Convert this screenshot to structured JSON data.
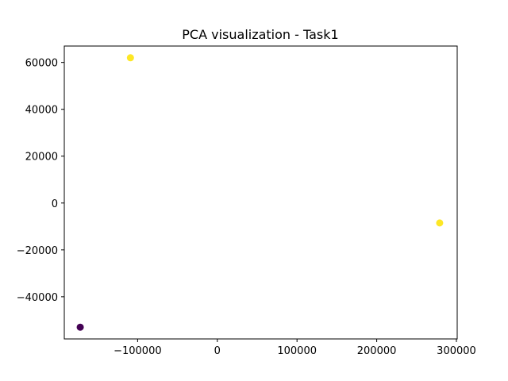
{
  "chart_data": {
    "type": "scatter",
    "title": "PCA visualization - Task1",
    "xlabel": "",
    "ylabel": "",
    "xlim": [
      -192000,
      301000
    ],
    "ylim": [
      -58000,
      67000
    ],
    "x_ticks": [
      -100000,
      0,
      100000,
      200000,
      300000
    ],
    "x_tick_labels": [
      "−100000",
      "0",
      "100000",
      "200000",
      "300000"
    ],
    "y_ticks": [
      -40000,
      -20000,
      0,
      20000,
      40000,
      60000
    ],
    "y_tick_labels": [
      "−40000",
      "−20000",
      "0",
      "20000",
      "40000",
      "60000"
    ],
    "grid": false,
    "legend": "none",
    "points": [
      {
        "x": -109000,
        "y": 62000,
        "color": "#fde725"
      },
      {
        "x": 279000,
        "y": -8500,
        "color": "#fde725"
      },
      {
        "x": -172000,
        "y": -53000,
        "color": "#440154"
      }
    ]
  }
}
